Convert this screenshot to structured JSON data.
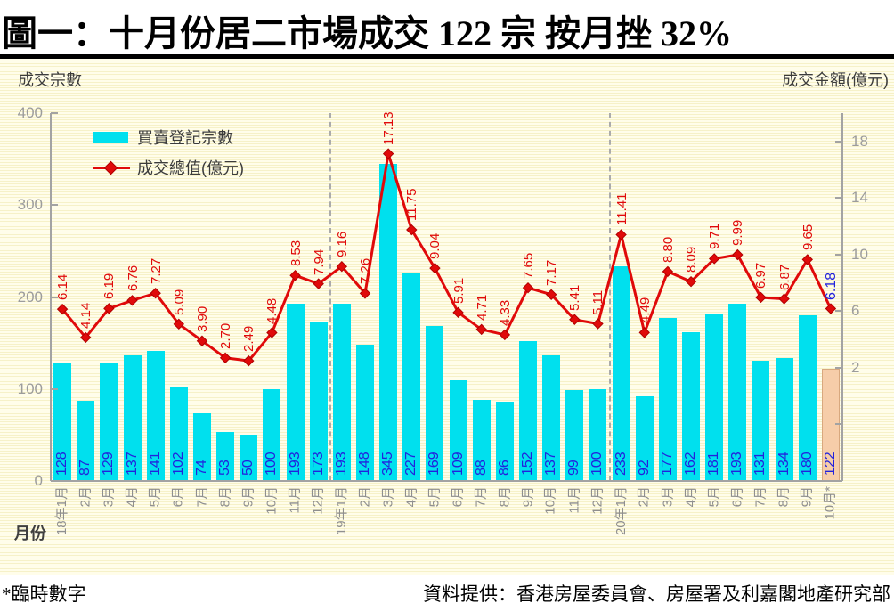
{
  "title": "圖一：十月份居二市場成交 122 宗  按月挫 32%",
  "chart_data": {
    "type": "bar+line",
    "categories": [
      "18年1月",
      "2月",
      "3月",
      "4月",
      "5月",
      "6月",
      "7月",
      "8月",
      "9月",
      "10月",
      "11月",
      "12月",
      "19年1月",
      "2月",
      "3月",
      "4月",
      "5月",
      "6月",
      "7月",
      "8月",
      "9月",
      "10月",
      "11月",
      "12月",
      "20年1月",
      "2月",
      "3月",
      "4月",
      "5月",
      "6月",
      "7月",
      "8月",
      "9月",
      "10月*"
    ],
    "series": [
      {
        "name": "買賣登記宗數",
        "type": "bar",
        "axis": "left",
        "values": [
          128,
          87,
          129,
          137,
          141,
          102,
          74,
          53,
          50,
          100,
          193,
          173,
          193,
          148,
          345,
          227,
          169,
          109,
          88,
          86,
          152,
          137,
          99,
          100,
          233,
          92,
          177,
          162,
          181,
          193,
          131,
          134,
          180,
          122
        ]
      },
      {
        "name": "成交總值(億元)",
        "type": "line",
        "axis": "right",
        "values": [
          6.14,
          4.14,
          6.19,
          6.76,
          7.27,
          5.09,
          3.9,
          2.7,
          2.49,
          4.48,
          8.53,
          7.94,
          9.16,
          7.26,
          17.13,
          11.75,
          9.04,
          5.91,
          4.71,
          4.33,
          7.65,
          7.17,
          5.41,
          5.11,
          11.41,
          4.49,
          8.8,
          8.09,
          9.71,
          9.99,
          6.97,
          6.87,
          9.65,
          6.18
        ]
      }
    ],
    "left_axis": {
      "title": "成交宗數",
      "ticks": [
        0,
        100,
        200,
        300,
        400
      ],
      "range": [
        0,
        400
      ]
    },
    "right_axis": {
      "title": "成交金額(億元)",
      "ticks": [
        2,
        6,
        10,
        14,
        18
      ],
      "unlabeled_ticks": [
        -2
      ],
      "range": [
        -6,
        20
      ]
    },
    "year_breaks": [
      12,
      24
    ],
    "highlight_last_index": 33,
    "xaxis_label": "月份",
    "legend_position": "top-left-inside",
    "grid": false
  },
  "legend": {
    "bar_label": "買賣登記宗數",
    "line_label": "成交總值(億元)"
  },
  "footer": {
    "note": "*臨時數字",
    "source": "資料提供：香港房屋委員會、房屋署及利嘉閣地產研究部"
  },
  "colors": {
    "bar": "#00e0ee",
    "bar_highlight": "#f6cda9",
    "bar_highlight_border": "#d8a87e",
    "line": "#e00a0a",
    "line_marker_border": "#b00000",
    "bar_value_label": "#2222dd",
    "line_value_label": "#e00a0a",
    "last_line_value_label": "#2222dd",
    "axis": "#a3a3a3",
    "tick_label": "#9c9c9c",
    "x_label": "#8f8f8f",
    "dashed_divider": "#ababab"
  }
}
